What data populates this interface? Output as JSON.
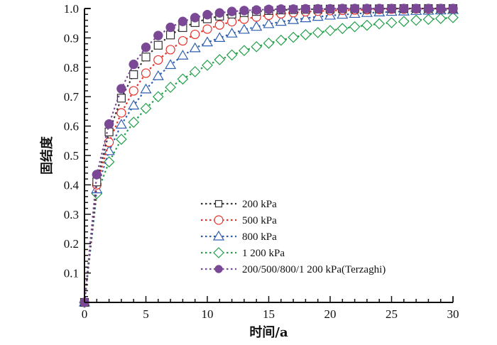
{
  "chart_data": {
    "type": "line",
    "title": "",
    "xlabel": "时间/a",
    "ylabel": "固结度",
    "xlim": [
      0,
      30
    ],
    "ylim": [
      0,
      1.0
    ],
    "xticks": [
      0,
      5,
      10,
      15,
      20,
      25,
      30
    ],
    "xtick_labels": [
      "0",
      "5",
      "10",
      "15",
      "20",
      "25",
      "30"
    ],
    "yticks": [
      0.1,
      0.2,
      0.3,
      0.4,
      0.5,
      0.6,
      0.7,
      0.8,
      0.9,
      1.0
    ],
    "ytick_labels": [
      "0.1",
      "0.2",
      "0.3",
      "0.4",
      "0.5",
      "0.6",
      "0.7",
      "0.8",
      "0.9",
      "1.0"
    ],
    "origin_label": "0",
    "grid": false,
    "legend_position": "center-right",
    "x": [
      0,
      1,
      2,
      3,
      4,
      5,
      6,
      7,
      8,
      9,
      10,
      11,
      12,
      13,
      14,
      15,
      16,
      17,
      18,
      19,
      20,
      21,
      22,
      23,
      24,
      25,
      26,
      27,
      28,
      29,
      30
    ],
    "series": [
      {
        "name": "200 kPa",
        "color": "#333333",
        "marker": "square",
        "values": [
          0,
          0.41,
          0.58,
          0.695,
          0.775,
          0.835,
          0.875,
          0.91,
          0.935,
          0.952,
          0.965,
          0.974,
          0.981,
          0.986,
          0.99,
          0.993,
          0.995,
          0.996,
          0.997,
          0.998,
          0.998,
          0.999,
          0.999,
          0.999,
          0.999,
          1.0,
          1.0,
          1.0,
          1.0,
          1.0,
          1.0
        ]
      },
      {
        "name": "500 kPa",
        "color": "#e8302a",
        "marker": "circle",
        "values": [
          0,
          0.4,
          0.545,
          0.645,
          0.72,
          0.78,
          0.825,
          0.86,
          0.89,
          0.912,
          0.93,
          0.944,
          0.955,
          0.964,
          0.971,
          0.977,
          0.982,
          0.986,
          0.989,
          0.991,
          0.993,
          0.994,
          0.995,
          0.996,
          0.997,
          0.998,
          0.998,
          0.999,
          0.999,
          0.999,
          0.999
        ]
      },
      {
        "name": "800 kPa",
        "color": "#2f5fb0",
        "marker": "triangle",
        "values": [
          0,
          0.385,
          0.515,
          0.605,
          0.67,
          0.725,
          0.77,
          0.808,
          0.84,
          0.865,
          0.885,
          0.9,
          0.915,
          0.928,
          0.938,
          0.947,
          0.955,
          0.961,
          0.967,
          0.972,
          0.976,
          0.979,
          0.982,
          0.985,
          0.987,
          0.989,
          0.99,
          0.992,
          0.993,
          0.994,
          0.995
        ]
      },
      {
        "name": "1 200 kPa",
        "color": "#23a04a",
        "marker": "diamond",
        "values": [
          0,
          0.37,
          0.478,
          0.555,
          0.613,
          0.66,
          0.7,
          0.732,
          0.76,
          0.785,
          0.807,
          0.826,
          0.842,
          0.857,
          0.87,
          0.882,
          0.892,
          0.902,
          0.911,
          0.918,
          0.925,
          0.932,
          0.938,
          0.943,
          0.948,
          0.952,
          0.956,
          0.96,
          0.963,
          0.966,
          0.969
        ]
      },
      {
        "name": "200/500/800/1 200 kPa(Terzaghi)",
        "color": "#7b4896",
        "marker": "filled-circle",
        "values": [
          0,
          0.435,
          0.607,
          0.727,
          0.81,
          0.868,
          0.908,
          0.936,
          0.956,
          0.969,
          0.979,
          0.985,
          0.99,
          0.993,
          0.995,
          0.997,
          0.998,
          0.998,
          0.999,
          0.999,
          0.999,
          1.0,
          1.0,
          1.0,
          1.0,
          1.0,
          1.0,
          1.0,
          1.0,
          1.0,
          1.0
        ]
      }
    ]
  }
}
